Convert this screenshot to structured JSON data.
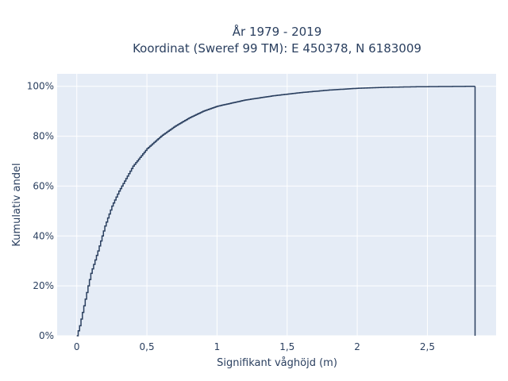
{
  "chart_data": {
    "type": "line",
    "line_shape": "step",
    "title_line1": "År 1979 - 2019",
    "title_line2": "Koordinat (Sweref 99 TM): E 450378, N 6183009",
    "xlabel": "Signifikant våghöjd (m)",
    "ylabel": "Kumulativ andel",
    "xlim": [
      -0.14,
      2.99
    ],
    "ylim": [
      0,
      1.05
    ],
    "x_ticks": [
      {
        "value": 0,
        "label": "0"
      },
      {
        "value": 0.5,
        "label": "0,5"
      },
      {
        "value": 1,
        "label": "1"
      },
      {
        "value": 1.5,
        "label": "1,5"
      },
      {
        "value": 2,
        "label": "2"
      },
      {
        "value": 2.5,
        "label": "2,5"
      }
    ],
    "y_ticks": [
      {
        "value": 0,
        "label": "0%"
      },
      {
        "value": 0.2,
        "label": "20%"
      },
      {
        "value": 0.4,
        "label": "40%"
      },
      {
        "value": 0.6,
        "label": "60%"
      },
      {
        "value": 0.8,
        "label": "80%"
      },
      {
        "value": 1.0,
        "label": "100%"
      }
    ],
    "grid": true,
    "legend": "none",
    "series": [
      {
        "x": [
          0.0,
          0.02,
          0.05,
          0.08,
          0.1,
          0.15,
          0.2,
          0.25,
          0.3,
          0.4,
          0.5,
          0.6,
          0.7,
          0.8,
          0.9,
          1.0,
          1.2,
          1.4,
          1.6,
          1.8,
          2.0,
          2.2,
          2.4,
          2.6,
          2.84,
          2.84
        ],
        "y": [
          0.0,
          0.04,
          0.12,
          0.2,
          0.25,
          0.34,
          0.44,
          0.52,
          0.58,
          0.68,
          0.75,
          0.8,
          0.84,
          0.873,
          0.9,
          0.92,
          0.945,
          0.962,
          0.975,
          0.985,
          0.992,
          0.996,
          0.998,
          0.999,
          1.0,
          0.0
        ]
      }
    ],
    "colors": {
      "line": "#2a3f5f",
      "plot_bg": "#e5ecf6",
      "grid": "#ffffff",
      "page_bg": "#ffffff"
    }
  }
}
